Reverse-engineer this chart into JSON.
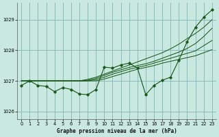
{
  "title": "Graphe pression niveau de la mer (hPa)",
  "background_color": "#c8e8e0",
  "plot_bg_color": "#c8e8e0",
  "grid_color": "#88bbbb",
  "line_color": "#1a5c1a",
  "xlim": [
    -0.5,
    23.5
  ],
  "ylim": [
    1025.75,
    1029.55
  ],
  "yticks": [
    1026,
    1027,
    1028,
    1029
  ],
  "xticks": [
    0,
    1,
    2,
    3,
    4,
    5,
    6,
    7,
    8,
    9,
    10,
    11,
    12,
    13,
    14,
    15,
    16,
    17,
    18,
    19,
    20,
    21,
    22,
    23
  ],
  "series_jagged": [
    1026.85,
    1027.0,
    1026.85,
    1026.82,
    1026.65,
    1026.78,
    1026.72,
    1026.57,
    1026.55,
    1026.72,
    1027.45,
    1027.42,
    1027.52,
    1027.58,
    1027.42,
    1026.55,
    1026.85,
    1027.02,
    1027.12,
    1027.68,
    1028.28,
    1028.75,
    1029.08,
    1029.32
  ],
  "series_smooth": [
    [
      1027.0,
      1027.0,
      1027.0,
      1027.0,
      1027.0,
      1027.0,
      1027.0,
      1027.0,
      1027.05,
      1027.12,
      1027.22,
      1027.32,
      1027.42,
      1027.52,
      1027.62,
      1027.72,
      1027.82,
      1027.92,
      1028.05,
      1028.2,
      1028.38,
      1028.55,
      1028.75,
      1029.0
    ],
    [
      1027.0,
      1027.0,
      1027.0,
      1027.0,
      1027.0,
      1027.0,
      1027.0,
      1027.0,
      1027.02,
      1027.08,
      1027.18,
      1027.28,
      1027.36,
      1027.44,
      1027.5,
      1027.56,
      1027.64,
      1027.74,
      1027.84,
      1027.94,
      1028.06,
      1028.22,
      1028.45,
      1028.72
    ],
    [
      1027.0,
      1027.0,
      1027.0,
      1027.0,
      1027.0,
      1027.0,
      1027.0,
      1027.0,
      1027.0,
      1027.04,
      1027.12,
      1027.22,
      1027.3,
      1027.38,
      1027.44,
      1027.5,
      1027.58,
      1027.66,
      1027.74,
      1027.82,
      1027.9,
      1027.98,
      1028.15,
      1028.32
    ],
    [
      1027.0,
      1027.0,
      1027.0,
      1027.0,
      1027.0,
      1027.0,
      1027.0,
      1027.0,
      1027.0,
      1027.0,
      1027.06,
      1027.14,
      1027.22,
      1027.3,
      1027.38,
      1027.44,
      1027.5,
      1027.58,
      1027.64,
      1027.7,
      1027.76,
      1027.82,
      1027.92,
      1028.02
    ]
  ]
}
